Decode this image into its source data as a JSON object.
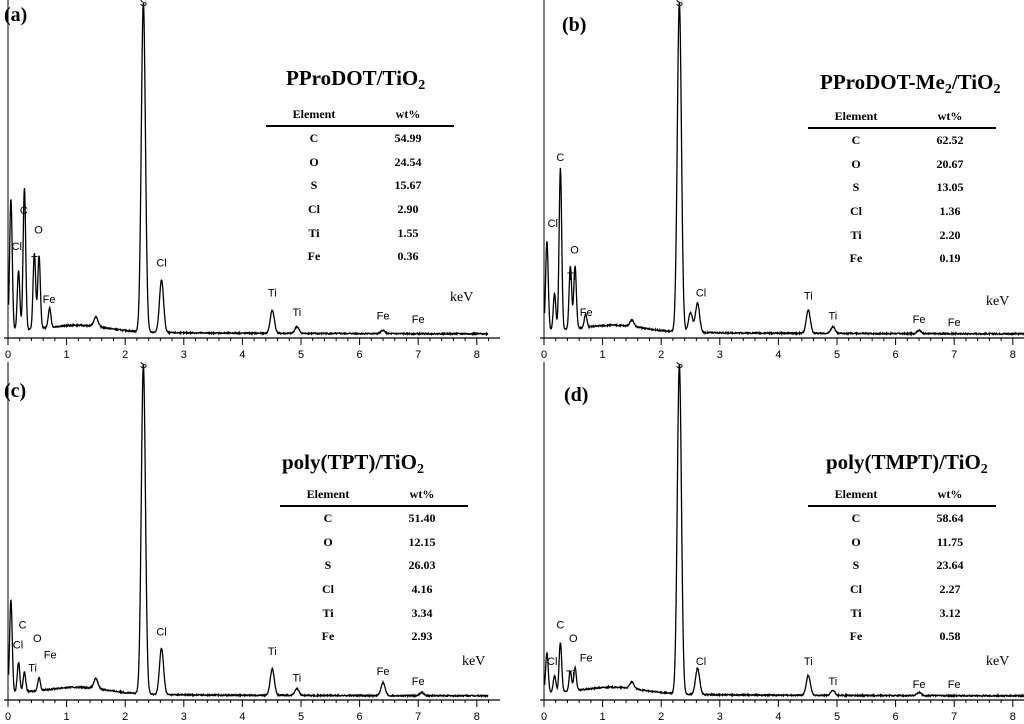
{
  "common": {
    "x_unit": "keV",
    "col_element": "Element",
    "col_wt": "wt%"
  },
  "chart_data": [
    {
      "type": "line",
      "panel": "(a)",
      "title_main": "PProDOT/TiO",
      "title_sub": "2",
      "xlabel": "keV",
      "xlim": [
        0,
        8.2
      ],
      "xticks": [
        "0",
        "1",
        "2",
        "3",
        "4",
        "5",
        "6",
        "7",
        "8"
      ],
      "peaks": [
        {
          "x": 0.05,
          "h": 0.4
        },
        {
          "x": 0.18,
          "h": 0.18
        },
        {
          "x": 0.28,
          "h": 0.43
        },
        {
          "x": 0.45,
          "h": 0.23
        },
        {
          "x": 0.53,
          "h": 0.22
        },
        {
          "x": 0.71,
          "h": 0.06
        },
        {
          "x": 1.5,
          "h": 0.03
        },
        {
          "x": 2.31,
          "h": 1.0
        },
        {
          "x": 2.62,
          "h": 0.16
        },
        {
          "x": 4.51,
          "h": 0.07
        },
        {
          "x": 4.93,
          "h": 0.02
        },
        {
          "x": 6.4,
          "h": 0.01
        }
      ],
      "peak_labels": [
        {
          "text": "S",
          "x": 2.31,
          "y": 1.0
        },
        {
          "text": "C",
          "x": 0.27,
          "y": 0.37
        },
        {
          "text": "Cl",
          "x": 0.15,
          "y": 0.26
        },
        {
          "text": "O",
          "x": 0.52,
          "y": 0.31
        },
        {
          "text": "Ti",
          "x": 0.47,
          "y": 0.22
        },
        {
          "text": "Fe",
          "x": 0.7,
          "y": 0.1
        },
        {
          "text": "Cl",
          "x": 2.62,
          "y": 0.21
        },
        {
          "text": "Ti",
          "x": 4.51,
          "y": 0.12
        },
        {
          "text": "Ti",
          "x": 4.93,
          "y": 0.06
        },
        {
          "text": "Fe",
          "x": 6.4,
          "y": 0.05
        },
        {
          "text": "Fe",
          "x": 7.0,
          "y": 0.04
        }
      ],
      "table": [
        {
          "element": "C",
          "wt": "54.99"
        },
        {
          "element": "O",
          "wt": "24.54"
        },
        {
          "element": "S",
          "wt": "15.67"
        },
        {
          "element": "Cl",
          "wt": "2.90"
        },
        {
          "element": "Ti",
          "wt": "1.55"
        },
        {
          "element": "Fe",
          "wt": "0.36"
        }
      ]
    },
    {
      "type": "line",
      "panel": "(b)",
      "title_main": "PProDOT-Me",
      "title_sub": "2",
      "title_tail": "/TiO",
      "title_sub2": "2",
      "xlabel": "keV",
      "xlim": [
        0,
        8.2
      ],
      "xticks": [
        "0",
        "1",
        "2",
        "3",
        "4",
        "5",
        "6",
        "7",
        "8"
      ],
      "peaks": [
        {
          "x": 0.05,
          "h": 0.27
        },
        {
          "x": 0.18,
          "h": 0.11
        },
        {
          "x": 0.28,
          "h": 0.49
        },
        {
          "x": 0.45,
          "h": 0.19
        },
        {
          "x": 0.53,
          "h": 0.19
        },
        {
          "x": 0.71,
          "h": 0.04
        },
        {
          "x": 1.5,
          "h": 0.02
        },
        {
          "x": 2.31,
          "h": 1.0
        },
        {
          "x": 2.5,
          "h": 0.06
        },
        {
          "x": 2.62,
          "h": 0.09
        },
        {
          "x": 4.51,
          "h": 0.07
        },
        {
          "x": 4.93,
          "h": 0.02
        },
        {
          "x": 6.4,
          "h": 0.01
        }
      ],
      "peak_labels": [
        {
          "text": "S",
          "x": 2.31,
          "y": 1.0
        },
        {
          "text": "C",
          "x": 0.28,
          "y": 0.53
        },
        {
          "text": "Cl",
          "x": 0.15,
          "y": 0.33
        },
        {
          "text": "O",
          "x": 0.52,
          "y": 0.25
        },
        {
          "text": "Ti",
          "x": 0.47,
          "y": 0.17
        },
        {
          "text": "Fe",
          "x": 0.72,
          "y": 0.06
        },
        {
          "text": "Cl",
          "x": 2.68,
          "y": 0.12
        },
        {
          "text": "Ti",
          "x": 4.51,
          "y": 0.11
        },
        {
          "text": "Ti",
          "x": 4.93,
          "y": 0.05
        },
        {
          "text": "Fe",
          "x": 6.4,
          "y": 0.04
        },
        {
          "text": "Fe",
          "x": 7.0,
          "y": 0.03
        }
      ],
      "table": [
        {
          "element": "C",
          "wt": "62.52"
        },
        {
          "element": "O",
          "wt": "20.67"
        },
        {
          "element": "S",
          "wt": "13.05"
        },
        {
          "element": "Cl",
          "wt": "1.36"
        },
        {
          "element": "Ti",
          "wt": "2.20"
        },
        {
          "element": "Fe",
          "wt": "0.19"
        }
      ]
    },
    {
      "type": "line",
      "panel": "(c)",
      "title_main": "poly(TPT)/TiO",
      "title_sub": "2",
      "xlabel": "keV",
      "xlim": [
        0,
        8.2
      ],
      "xticks": [
        "0",
        "1",
        "2",
        "3",
        "4",
        "5",
        "6",
        "7",
        "8"
      ],
      "peaks": [
        {
          "x": 0.05,
          "h": 0.28
        },
        {
          "x": 0.18,
          "h": 0.09
        },
        {
          "x": 0.28,
          "h": 0.06
        },
        {
          "x": 0.53,
          "h": 0.04
        },
        {
          "x": 1.5,
          "h": 0.03
        },
        {
          "x": 2.31,
          "h": 1.0
        },
        {
          "x": 2.62,
          "h": 0.14
        },
        {
          "x": 4.51,
          "h": 0.08
        },
        {
          "x": 4.93,
          "h": 0.02
        },
        {
          "x": 6.4,
          "h": 0.04
        },
        {
          "x": 7.06,
          "h": 0.01
        }
      ],
      "peak_labels": [
        {
          "text": "S",
          "x": 2.31,
          "y": 1.0
        },
        {
          "text": "C",
          "x": 0.25,
          "y": 0.21
        },
        {
          "text": "Cl",
          "x": 0.17,
          "y": 0.15
        },
        {
          "text": "O",
          "x": 0.5,
          "y": 0.17
        },
        {
          "text": "Ti",
          "x": 0.42,
          "y": 0.08
        },
        {
          "text": "Fe",
          "x": 0.72,
          "y": 0.12
        },
        {
          "text": "Cl",
          "x": 2.62,
          "y": 0.19
        },
        {
          "text": "Ti",
          "x": 4.51,
          "y": 0.13
        },
        {
          "text": "Ti",
          "x": 4.93,
          "y": 0.05
        },
        {
          "text": "Fe",
          "x": 6.4,
          "y": 0.07
        },
        {
          "text": "Fe",
          "x": 7.0,
          "y": 0.04
        }
      ],
      "table": [
        {
          "element": "C",
          "wt": "51.40"
        },
        {
          "element": "O",
          "wt": "12.15"
        },
        {
          "element": "S",
          "wt": "26.03"
        },
        {
          "element": "Cl",
          "wt": "4.16"
        },
        {
          "element": "Ti",
          "wt": "3.34"
        },
        {
          "element": "Fe",
          "wt": "2.93"
        }
      ]
    },
    {
      "type": "line",
      "panel": "(d)",
      "title_main": "poly(TMPT)/TiO",
      "title_sub": "2",
      "xlabel": "keV",
      "xlim": [
        0,
        8.2
      ],
      "xticks": [
        "0",
        "1",
        "2",
        "3",
        "4",
        "5",
        "6",
        "7",
        "8"
      ],
      "peaks": [
        {
          "x": 0.05,
          "h": 0.12
        },
        {
          "x": 0.18,
          "h": 0.05
        },
        {
          "x": 0.28,
          "h": 0.15
        },
        {
          "x": 0.45,
          "h": 0.06
        },
        {
          "x": 0.53,
          "h": 0.07
        },
        {
          "x": 1.5,
          "h": 0.02
        },
        {
          "x": 2.31,
          "h": 1.0
        },
        {
          "x": 2.62,
          "h": 0.08
        },
        {
          "x": 4.51,
          "h": 0.06
        },
        {
          "x": 4.93,
          "h": 0.015
        },
        {
          "x": 6.4,
          "h": 0.01
        }
      ],
      "peak_labels": [
        {
          "text": "S",
          "x": 2.31,
          "y": 1.0
        },
        {
          "text": "C",
          "x": 0.28,
          "y": 0.21
        },
        {
          "text": "Cl",
          "x": 0.14,
          "y": 0.1
        },
        {
          "text": "O",
          "x": 0.5,
          "y": 0.17
        },
        {
          "text": "Ti",
          "x": 0.45,
          "y": 0.06
        },
        {
          "text": "Fe",
          "x": 0.72,
          "y": 0.11
        },
        {
          "text": "Cl",
          "x": 2.68,
          "y": 0.1
        },
        {
          "text": "Ti",
          "x": 4.51,
          "y": 0.1
        },
        {
          "text": "Ti",
          "x": 4.93,
          "y": 0.04
        },
        {
          "text": "Fe",
          "x": 6.4,
          "y": 0.03
        },
        {
          "text": "Fe",
          "x": 7.0,
          "y": 0.03
        }
      ],
      "table": [
        {
          "element": "C",
          "wt": "58.64"
        },
        {
          "element": "O",
          "wt": "11.75"
        },
        {
          "element": "S",
          "wt": "23.64"
        },
        {
          "element": "Cl",
          "wt": "2.27"
        },
        {
          "element": "Ti",
          "wt": "3.12"
        },
        {
          "element": "Fe",
          "wt": "0.58"
        }
      ]
    }
  ]
}
